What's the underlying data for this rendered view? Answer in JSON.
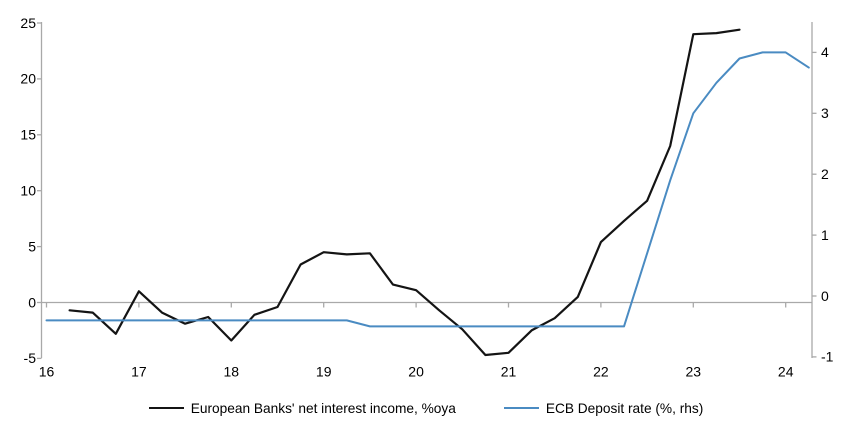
{
  "chart_data": {
    "type": "line",
    "title": "",
    "x_axis": {
      "tick_labels": [
        16,
        17,
        18,
        19,
        20,
        21,
        22,
        23,
        24
      ],
      "range": [
        15.95,
        24.3
      ]
    },
    "left_axis": {
      "tick_labels": [
        -5,
        0,
        5,
        10,
        15,
        20,
        25
      ],
      "range": [
        -5,
        25
      ]
    },
    "right_axis": {
      "tick_labels": [
        -1,
        0,
        1,
        2,
        3,
        4
      ],
      "range": [
        -1,
        4.5
      ]
    },
    "grid": "zero-line-only",
    "legend_position": "bottom",
    "series": [
      {
        "name": "European Banks' net interest income, %oya",
        "color": "#141414",
        "axis": "left",
        "x": [
          16.25,
          16.5,
          16.75,
          17,
          17.25,
          17.5,
          17.75,
          18,
          18.25,
          18.5,
          18.75,
          19,
          19.25,
          19.5,
          19.75,
          20,
          20.25,
          20.5,
          20.75,
          21,
          21.25,
          21.5,
          21.75,
          22,
          22.25,
          22.5,
          22.75,
          23,
          23.25,
          23.5
        ],
        "values": [
          -0.7,
          -0.9,
          -2.8,
          1.0,
          -0.9,
          -1.9,
          -1.3,
          -3.4,
          -1.1,
          -0.4,
          3.4,
          4.5,
          4.3,
          4.4,
          1.6,
          1.1,
          -0.7,
          -2.4,
          -4.7,
          -4.5,
          -2.5,
          -1.4,
          0.5,
          5.4,
          7.3,
          9.1,
          14.0,
          24.0,
          24.1,
          24.4
        ]
      },
      {
        "name": "ECB Deposit rate (%, rhs)",
        "color": "#4a8bc2",
        "axis": "right",
        "x": [
          16,
          16.25,
          16.5,
          16.75,
          17,
          17.25,
          17.5,
          17.75,
          18,
          18.25,
          18.5,
          18.75,
          19,
          19.25,
          19.5,
          19.75,
          20,
          20.25,
          20.5,
          20.75,
          21,
          21.25,
          21.5,
          21.75,
          22,
          22.25,
          22.5,
          22.75,
          23,
          23.25,
          23.5,
          23.75,
          24,
          24.25
        ],
        "values": [
          -0.4,
          -0.4,
          -0.4,
          -0.4,
          -0.4,
          -0.4,
          -0.4,
          -0.4,
          -0.4,
          -0.4,
          -0.4,
          -0.4,
          -0.4,
          -0.4,
          -0.5,
          -0.5,
          -0.5,
          -0.5,
          -0.5,
          -0.5,
          -0.5,
          -0.5,
          -0.5,
          -0.5,
          -0.5,
          -0.5,
          0.7,
          1.9,
          3.0,
          3.5,
          3.9,
          4.0,
          4.0,
          3.75
        ]
      }
    ]
  },
  "colors": {
    "axis": "#a9a9a9",
    "zero_line": "#a9a9a9",
    "text": "#000000",
    "background": "#ffffff",
    "series1": "#141414",
    "series2": "#4a8bc2"
  }
}
